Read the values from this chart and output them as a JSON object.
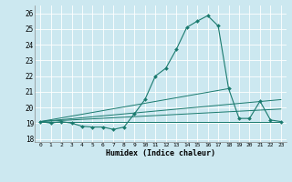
{
  "xlabel": "Humidex (Indice chaleur)",
  "ylabel": "",
  "xlim": [
    -0.5,
    23.5
  ],
  "ylim": [
    17.8,
    26.5
  ],
  "xticks": [
    0,
    1,
    2,
    3,
    4,
    5,
    6,
    7,
    8,
    9,
    10,
    11,
    12,
    13,
    14,
    15,
    16,
    17,
    18,
    19,
    20,
    21,
    22,
    23
  ],
  "yticks": [
    18,
    19,
    20,
    21,
    22,
    23,
    24,
    25,
    26
  ],
  "bg_color": "#cce8f0",
  "grid_color": "#ffffff",
  "line_color": "#1a7a6e",
  "main_line": {
    "x": [
      0,
      1,
      2,
      3,
      4,
      5,
      6,
      7,
      8,
      9,
      10,
      11,
      12,
      13,
      14,
      15,
      16,
      17,
      18,
      19,
      20,
      21,
      22,
      23
    ],
    "y": [
      19.1,
      19.0,
      19.1,
      19.0,
      18.8,
      18.75,
      18.75,
      18.6,
      18.75,
      19.6,
      20.5,
      22.0,
      22.5,
      23.7,
      25.1,
      25.5,
      25.85,
      25.2,
      21.2,
      19.3,
      19.3,
      20.4,
      19.2,
      19.1
    ]
  },
  "extra_lines": [
    {
      "x": [
        0,
        23
      ],
      "y": [
        19.1,
        19.1
      ]
    },
    {
      "x": [
        0,
        18
      ],
      "y": [
        19.1,
        21.2
      ]
    },
    {
      "x": [
        0,
        23
      ],
      "y": [
        19.1,
        19.9
      ]
    },
    {
      "x": [
        0,
        23
      ],
      "y": [
        19.1,
        20.5
      ]
    }
  ]
}
